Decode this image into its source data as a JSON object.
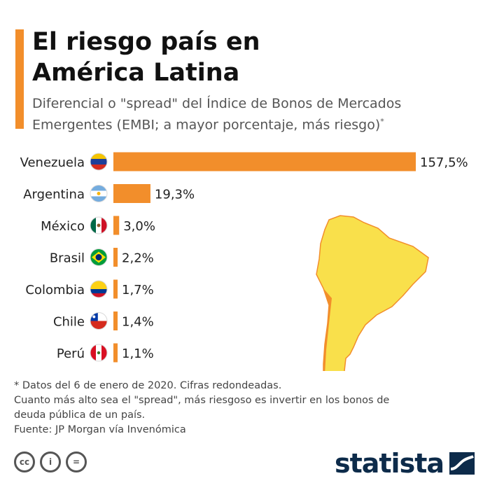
{
  "title_line1": "El riesgo país en",
  "title_line2": "América Latina",
  "subtitle_line1": "Diferencial o \"spread\" del Índice de Bonos de Mercados",
  "subtitle_line2": "Emergentes (EMBI; a mayor porcentaje, más riesgo)",
  "subtitle_mark": "*",
  "chart_data": {
    "type": "bar",
    "orientation": "horizontal",
    "categories": [
      "Venezuela",
      "Argentina",
      "México",
      "Brasil",
      "Colombia",
      "Chile",
      "Perú"
    ],
    "values": [
      157.5,
      19.3,
      3.0,
      2.2,
      1.7,
      1.4,
      1.1
    ],
    "value_labels": [
      "157,5%",
      "19,3%",
      "3,0%",
      "2,2%",
      "1,7%",
      "1,4%",
      "1,1%"
    ],
    "flags": [
      "venezuela-flag",
      "argentina-flag",
      "mexico-flag",
      "brazil-flag",
      "colombia-flag",
      "chile-flag",
      "peru-flag"
    ],
    "bar_color": "#f28e2b",
    "xlim": [
      0,
      157.5
    ],
    "grid": false,
    "legend": "none"
  },
  "map": {
    "icon": "south-america-map-icon",
    "land_color": "#f9e04b",
    "highlight_color": "#f28e2b"
  },
  "notes": [
    "* Datos del 6 de enero de 2020. Cifras redondeadas.",
    "Cuanto más alto sea el \"spread\", más riesgoso es invertir en los bonos de",
    "deuda pública de un país.",
    "Fuente: JP Morgan vía Invenómica"
  ],
  "license_icons": [
    "cc-icon",
    "attribution-icon",
    "no-derivatives-icon"
  ],
  "license_glyphs": [
    "cc",
    "i",
    "="
  ],
  "brand": {
    "name": "statista",
    "color": "#0d2b4a"
  },
  "colors": {
    "accent": "#f28e2b",
    "text": "#111111",
    "subtitle": "#555555"
  }
}
